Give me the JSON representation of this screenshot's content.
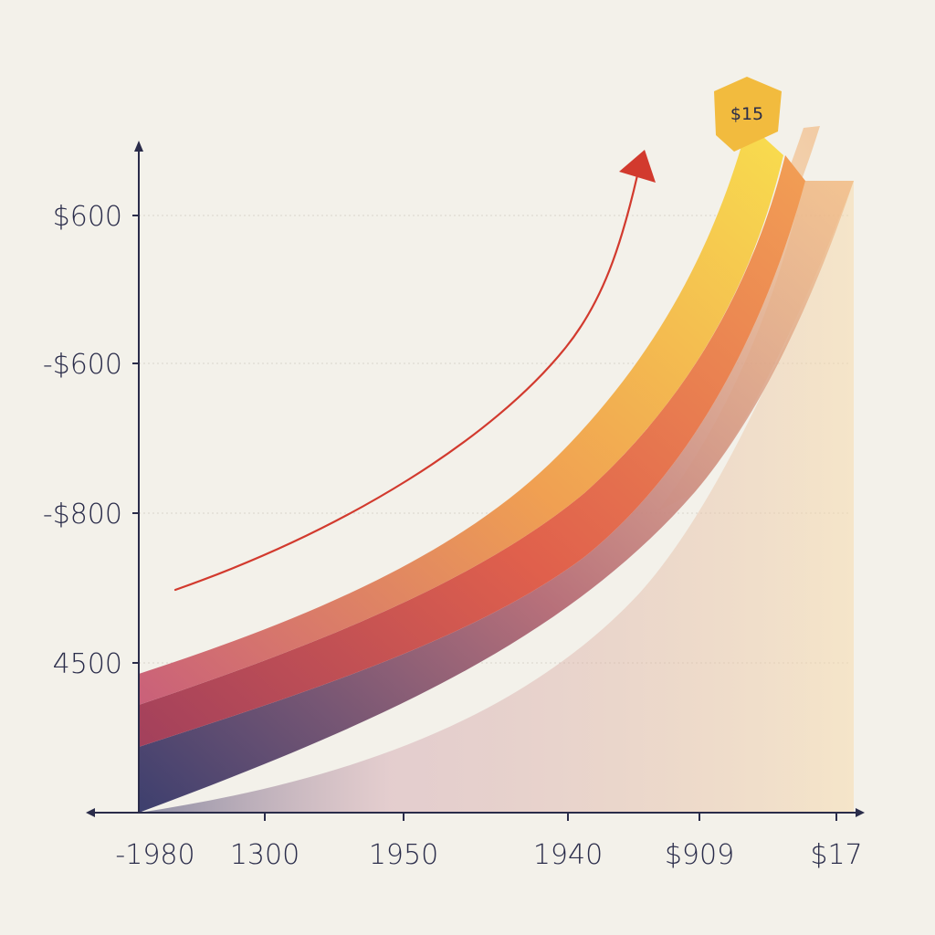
{
  "chart_data": {
    "type": "area",
    "title": "",
    "xlabel": "",
    "ylabel": "",
    "x_ticks": [
      "-1980",
      "1300",
      "1950",
      "1940",
      "$909",
      "$17"
    ],
    "y_ticks": [
      "$600",
      "-$600",
      "-$800",
      "4500"
    ],
    "grid": true,
    "legend": "none",
    "annotation": {
      "text": "$15"
    },
    "x": [
      0,
      1,
      2,
      3,
      4,
      5
    ],
    "series": [
      {
        "values": [
          40,
          80,
          150,
          280,
          520,
          960
        ],
        "color": "#f6c84a"
      },
      {
        "values": [
          20,
          55,
          110,
          210,
          400,
          840
        ],
        "color": "#e8734f"
      },
      {
        "values": [
          0,
          30,
          75,
          150,
          310,
          720
        ],
        "color": "#3d3f6e"
      }
    ],
    "trend_arrow": {
      "color": "#d23a2e",
      "values": [
        0.12,
        0.3,
        0.52,
        0.78,
        0.96
      ]
    },
    "colors": {
      "axis": "#2a2c4a",
      "grid": "#d8d5cc",
      "badge": "#f2bb3e",
      "background": "#f3f1ea"
    }
  }
}
